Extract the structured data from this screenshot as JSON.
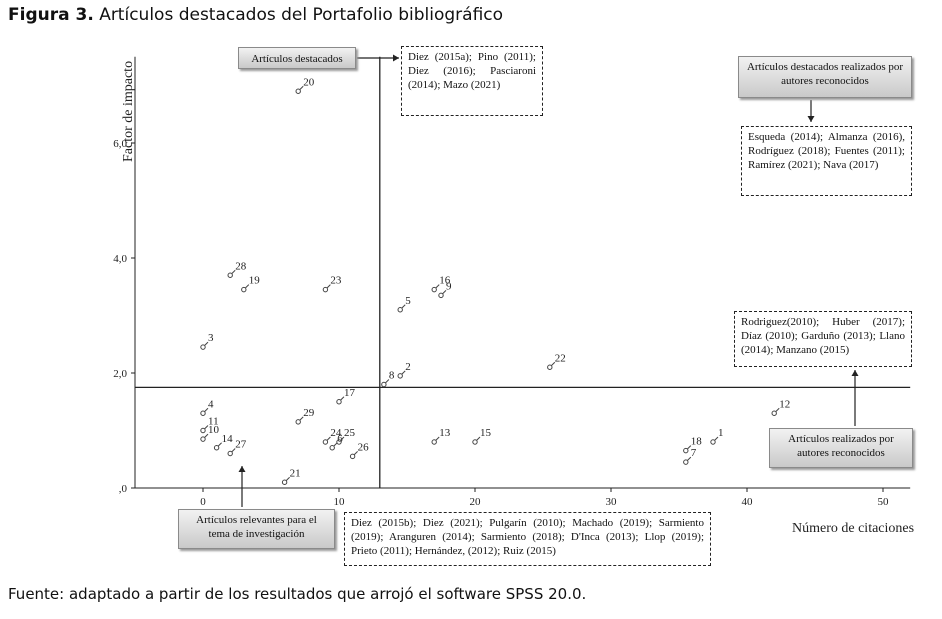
{
  "figure": {
    "label": "Figura 3.",
    "title": "Artículos destacados del Portafolio bibliográfico",
    "source": "Fuente: adaptado a partir de los resultados que arrojó el software SPSS 20.0."
  },
  "chart_data": {
    "type": "scatter",
    "title": "Artículos destacados del Portafolio bibliográfico",
    "xlabel": "Número de citaciones",
    "ylabel": "Factor de impacto",
    "xlim": [
      -5,
      52
    ],
    "ylim": [
      0,
      7.5
    ],
    "xticks": [
      0,
      10,
      20,
      30,
      40,
      50
    ],
    "xtick_labels": [
      "0",
      "10",
      "20",
      "30",
      "40",
      "50"
    ],
    "yticks": [
      0,
      2,
      4,
      6
    ],
    "ytick_labels": [
      ",0",
      "2,0",
      "4,0",
      "6,0"
    ],
    "reference_lines": {
      "x": 13,
      "y": 1.75
    },
    "grid": false,
    "points": [
      {
        "label": "1",
        "x": 37.5,
        "y": 0.8
      },
      {
        "label": "2",
        "x": 14.5,
        "y": 1.95
      },
      {
        "label": "3",
        "x": 0,
        "y": 2.45
      },
      {
        "label": "4",
        "x": 0,
        "y": 1.3
      },
      {
        "label": "5",
        "x": 14.5,
        "y": 3.1
      },
      {
        "label": "6",
        "x": 9.5,
        "y": 0.7
      },
      {
        "label": "7",
        "x": 35.5,
        "y": 0.45
      },
      {
        "label": "8",
        "x": 13.3,
        "y": 1.8
      },
      {
        "label": "9",
        "x": 17.5,
        "y": 3.35
      },
      {
        "label": "10",
        "x": 0,
        "y": 0.85
      },
      {
        "label": "11",
        "x": 0,
        "y": 1.0
      },
      {
        "label": "12",
        "x": 42,
        "y": 1.3
      },
      {
        "label": "13",
        "x": 17,
        "y": 0.8
      },
      {
        "label": "14",
        "x": 1,
        "y": 0.7
      },
      {
        "label": "15",
        "x": 20,
        "y": 0.8
      },
      {
        "label": "16",
        "x": 17,
        "y": 3.45
      },
      {
        "label": "17",
        "x": 10,
        "y": 1.5
      },
      {
        "label": "18",
        "x": 35.5,
        "y": 0.65
      },
      {
        "label": "19",
        "x": 3,
        "y": 3.45
      },
      {
        "label": "20",
        "x": 7,
        "y": 6.9
      },
      {
        "label": "21",
        "x": 6,
        "y": 0.1
      },
      {
        "label": "22",
        "x": 25.5,
        "y": 2.1
      },
      {
        "label": "23",
        "x": 9,
        "y": 3.45
      },
      {
        "label": "24",
        "x": 9,
        "y": 0.8
      },
      {
        "label": "25",
        "x": 10,
        "y": 0.8
      },
      {
        "label": "26",
        "x": 11,
        "y": 0.55
      },
      {
        "label": "27",
        "x": 2,
        "y": 0.6
      },
      {
        "label": "28",
        "x": 2,
        "y": 3.7
      },
      {
        "label": "29",
        "x": 7,
        "y": 1.15
      }
    ]
  },
  "annotations": {
    "destacados_label": "Artículos destacados",
    "destacados_refs": "Diez (2015a); Pino (2011); Diez (2016); Pasciaroni (2014); Mazo (2021)",
    "autores_destacados_label": "Artículos destacados realizados por autores reconocidos",
    "autores_destacados_refs": "Esqueda (2014); Almanza (2016), Rodríguez (2018); Fuentes (2011); Ramírez (2021); Nava (2017)",
    "autores_reconocidos_refs": "Rodriguez(2010); Huber (2017); Díaz (2010); Garduño (2013); Llano (2014); Manzano (2015)",
    "autores_reconocidos_label": "Artículos realizados por autores reconocidos",
    "relevantes_label": "Artículos relevantes para el tema de investigación",
    "relevantes_refs": "Diez (2015b); Diez (2021); Pulgarín (2010); Machado (2019); Sarmiento (2019); Aranguren (2014); Sarmiento (2018); D'Inca (2013); Llop (2019); Prieto (2011); Hernández, (2012); Ruiz (2015)"
  },
  "colors": {
    "axis": "#222222",
    "marker": "#444444",
    "box_fill_top": "#f2f2f2",
    "box_fill_bottom": "#c9c9c9"
  }
}
